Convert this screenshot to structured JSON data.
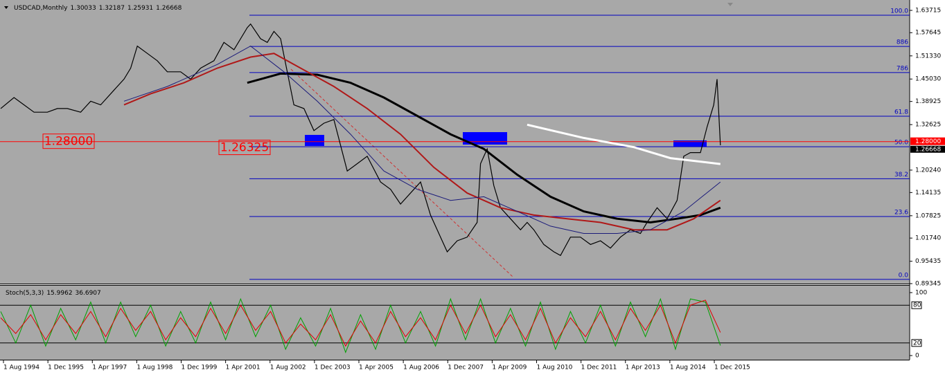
{
  "chart_data": [
    {
      "type": "line",
      "symbol": "USDCAD,Monthly",
      "ohlc": [
        1.30033,
        1.32187,
        1.25931,
        1.26668
      ],
      "xlim": [
        1994.479,
        2021.78
      ],
      "xticks": [
        {
          "value": 1994.583,
          "label": "1 Aug 1994"
        },
        {
          "value": 1995.917,
          "label": "1 Dec 1995"
        },
        {
          "value": 1997.25,
          "label": "1 Apr 1997"
        },
        {
          "value": 1998.583,
          "label": "1 Aug 1998"
        },
        {
          "value": 1999.917,
          "label": "1 Dec 1999"
        },
        {
          "value": 2001.25,
          "label": "1 Apr 2001"
        },
        {
          "value": 2002.583,
          "label": "1 Aug 2002"
        },
        {
          "value": 2003.917,
          "label": "1 Dec 2003"
        },
        {
          "value": 2005.25,
          "label": "1 Apr 2005"
        },
        {
          "value": 2006.583,
          "label": "1 Aug 2006"
        },
        {
          "value": 2007.917,
          "label": "1 Dec 2007"
        },
        {
          "value": 2009.25,
          "label": "1 Apr 2009"
        },
        {
          "value": 2010.583,
          "label": "1 Aug 2010"
        },
        {
          "value": 2011.917,
          "label": "1 Dec 2011"
        },
        {
          "value": 2013.25,
          "label": "1 Apr 2013"
        },
        {
          "value": 2014.583,
          "label": "1 Aug 2014"
        },
        {
          "value": 2015.917,
          "label": "1 Dec 2015"
        }
      ],
      "ylim": [
        0.89345,
        1.6654
      ],
      "yticks": [
        {
          "value": 1.63715,
          "label": "1.63715"
        },
        {
          "value": 1.57645,
          "label": "1.57645"
        },
        {
          "value": 1.5133,
          "label": "1.51330"
        },
        {
          "value": 1.4503,
          "label": "1.45030"
        },
        {
          "value": 1.38925,
          "label": "1.38925"
        },
        {
          "value": 1.32625,
          "label": "1.32625"
        },
        {
          "value": 1.2024,
          "label": "1.20240"
        },
        {
          "value": 1.14135,
          "label": "1.14135"
        },
        {
          "value": 1.07825,
          "label": "1.07825"
        },
        {
          "value": 1.0174,
          "label": "1.01740"
        },
        {
          "value": 0.95435,
          "label": "0.95435"
        },
        {
          "value": 0.89345,
          "label": "0.89345"
        }
      ],
      "series": [
        {
          "color": "#000000",
          "width": 1.2,
          "x": [
            1994.5,
            1994.9,
            1995.2,
            1995.5,
            1995.9,
            1996.2,
            1996.5,
            1996.9,
            1997.2,
            1997.5,
            1997.9,
            1998.2,
            1998.4,
            1998.6,
            1998.9,
            1999.2,
            1999.5,
            1999.9,
            2000.2,
            2000.5,
            2000.9,
            2001.2,
            2001.5,
            2001.9,
            2002.0,
            2002.3,
            2002.5,
            2002.7,
            2002.9,
            2003.1,
            2003.3,
            2003.6,
            2003.9,
            2004.2,
            2004.5,
            2004.9,
            2005.2,
            2005.5,
            2005.9,
            2006.2,
            2006.5,
            2006.9,
            2007.1,
            2007.4,
            2007.7,
            2007.9,
            2008.2,
            2008.5,
            2008.8,
            2008.9,
            2009.1,
            2009.3,
            2009.5,
            2009.8,
            2010.1,
            2010.3,
            2010.5,
            2010.8,
            2011.1,
            2011.3,
            2011.6,
            2011.9,
            2012.2,
            2012.5,
            2012.8,
            2013.1,
            2013.4,
            2013.7,
            2013.9,
            2014.2,
            2014.5,
            2014.8,
            2015.0,
            2015.2,
            2015.5,
            2015.7,
            2015.9,
            2016.0,
            2016.1
          ],
          "values": [
            1.37,
            1.4,
            1.38,
            1.36,
            1.36,
            1.37,
            1.37,
            1.36,
            1.39,
            1.38,
            1.42,
            1.45,
            1.48,
            1.54,
            1.52,
            1.5,
            1.47,
            1.47,
            1.45,
            1.48,
            1.5,
            1.55,
            1.53,
            1.59,
            1.6,
            1.56,
            1.55,
            1.58,
            1.56,
            1.47,
            1.38,
            1.37,
            1.31,
            1.33,
            1.34,
            1.2,
            1.22,
            1.24,
            1.17,
            1.15,
            1.11,
            1.15,
            1.17,
            1.08,
            1.02,
            0.98,
            1.01,
            1.02,
            1.06,
            1.22,
            1.26,
            1.16,
            1.1,
            1.07,
            1.04,
            1.06,
            1.04,
            1.0,
            0.98,
            0.97,
            1.02,
            1.02,
            1.0,
            1.01,
            0.99,
            1.02,
            1.04,
            1.03,
            1.06,
            1.1,
            1.07,
            1.12,
            1.24,
            1.25,
            1.25,
            1.32,
            1.38,
            1.45,
            1.27
          ]
        },
        {
          "color": "#000000",
          "width": 3,
          "x": [
            2001.9,
            2002.9,
            2004.0,
            2005.0,
            2006.0,
            2007.0,
            2008.0,
            2009.0,
            2010.0,
            2011.0,
            2012.0,
            2013.0,
            2014.0,
            2014.8,
            2015.5,
            2016.1
          ],
          "values": [
            1.44,
            1.465,
            1.462,
            1.44,
            1.4,
            1.35,
            1.3,
            1.26,
            1.19,
            1.13,
            1.09,
            1.07,
            1.06,
            1.07,
            1.08,
            1.1
          ]
        },
        {
          "color": "#ffffff",
          "width": 3,
          "x": [
            2010.3,
            2012.0,
            2013.5,
            2014.6,
            2016.1
          ],
          "values": [
            1.326,
            1.29,
            1.265,
            1.235,
            1.219
          ]
        },
        {
          "color": "#b01818",
          "width": 2,
          "x": [
            1998.2,
            1999.0,
            2000.0,
            2001.0,
            2002.0,
            2002.7,
            2003.5,
            2004.5,
            2005.5,
            2006.5,
            2007.5,
            2008.5,
            2009.5,
            2010.5,
            2011.5,
            2012.5,
            2013.5,
            2014.5,
            2015.3,
            2016.1
          ],
          "values": [
            1.38,
            1.41,
            1.44,
            1.48,
            1.51,
            1.52,
            1.48,
            1.43,
            1.37,
            1.3,
            1.21,
            1.14,
            1.1,
            1.08,
            1.07,
            1.06,
            1.04,
            1.04,
            1.07,
            1.12
          ]
        },
        {
          "color": "#1a1a7a",
          "width": 1,
          "x": [
            1998.2,
            1999.5,
            2001.0,
            2002.0,
            2003.0,
            2004.0,
            2005.0,
            2006.0,
            2007.0,
            2008.0,
            2009.0,
            2010.0,
            2011.0,
            2012.0,
            2013.0,
            2014.0,
            2015.0,
            2016.1
          ],
          "values": [
            1.39,
            1.43,
            1.49,
            1.54,
            1.47,
            1.39,
            1.3,
            1.2,
            1.15,
            1.12,
            1.13,
            1.09,
            1.05,
            1.03,
            1.03,
            1.04,
            1.09,
            1.17
          ]
        }
      ],
      "fib_levels": [
        {
          "label": "100.0",
          "value": 1.624
        },
        {
          "label": "886",
          "value": 1.539
        },
        {
          "label": "786",
          "value": 1.468
        },
        {
          "label": "61.8",
          "value": 1.349
        },
        {
          "label": "50.0",
          "value": 1.266
        },
        {
          "label": "38.2",
          "value": 1.179
        },
        {
          "label": "23.6",
          "value": 1.076
        },
        {
          "label": "0.0",
          "value": 0.905
        }
      ],
      "hline": {
        "value": 1.28,
        "label": "1.28000",
        "color": "#ff0000"
      },
      "annotations": [
        {
          "value": 1.28,
          "label": "1.28000"
        },
        {
          "value": 1.26325,
          "label": "1.26325"
        }
      ]
    },
    {
      "type": "line",
      "title": "Stoch(5,3,3)",
      "readings": [
        15.9962,
        36.6907
      ],
      "ylim": [
        -6.6,
        111
      ],
      "yticks": [
        0,
        100
      ],
      "levels": [
        80,
        20
      ],
      "x": [
        1994.5,
        1994.95,
        1995.4,
        1995.85,
        1996.3,
        1996.75,
        1997.2,
        1997.65,
        1998.1,
        1998.55,
        1999.0,
        1999.45,
        1999.9,
        2000.35,
        2000.8,
        2001.25,
        2001.7,
        2002.15,
        2002.6,
        2003.05,
        2003.5,
        2003.95,
        2004.4,
        2004.85,
        2005.3,
        2005.75,
        2006.2,
        2006.65,
        2007.1,
        2007.55,
        2008.0,
        2008.45,
        2008.9,
        2009.35,
        2009.8,
        2010.25,
        2010.7,
        2011.15,
        2011.6,
        2012.05,
        2012.5,
        2012.95,
        2013.4,
        2013.85,
        2014.3,
        2014.75,
        2015.2,
        2015.65,
        2016.1
      ],
      "series": [
        {
          "color": "#00a000",
          "values": [
            70,
            20,
            80,
            15,
            75,
            25,
            85,
            20,
            85,
            30,
            80,
            15,
            70,
            20,
            85,
            25,
            90,
            30,
            80,
            10,
            60,
            15,
            75,
            5,
            65,
            10,
            80,
            20,
            70,
            15,
            90,
            25,
            90,
            20,
            75,
            15,
            85,
            10,
            70,
            20,
            80,
            15,
            85,
            30,
            90,
            10,
            90,
            85,
            15.9962
          ]
        },
        {
          "color": "#e00000",
          "values": [
            60,
            35,
            65,
            25,
            65,
            35,
            70,
            30,
            75,
            40,
            70,
            25,
            60,
            30,
            75,
            35,
            80,
            40,
            70,
            20,
            50,
            25,
            65,
            15,
            55,
            20,
            70,
            30,
            60,
            25,
            80,
            35,
            80,
            30,
            65,
            25,
            75,
            20,
            60,
            30,
            70,
            25,
            75,
            40,
            80,
            20,
            80,
            88,
            36.6907
          ]
        }
      ]
    }
  ]
}
